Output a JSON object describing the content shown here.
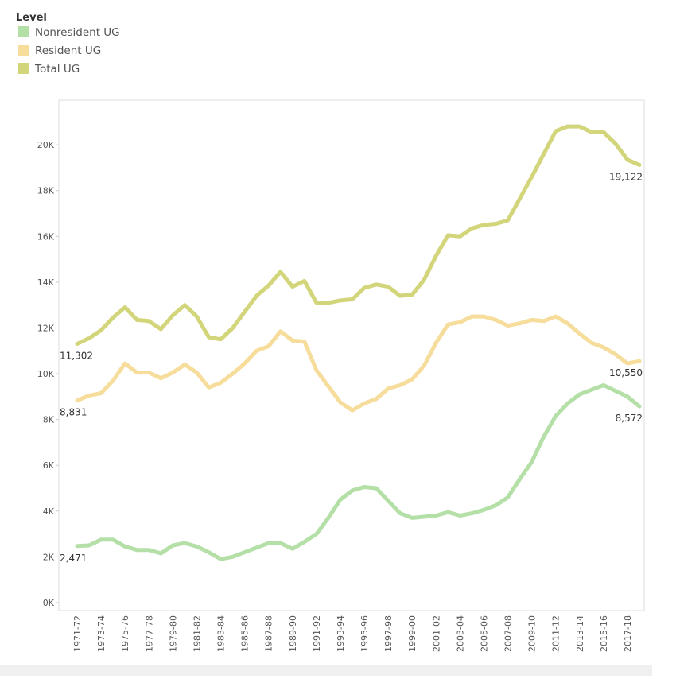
{
  "chart_data": {
    "type": "line",
    "legend_title": "Level",
    "legend": "top-left",
    "grid": false,
    "categories": [
      "1971-72",
      null,
      "1973-74",
      null,
      "1975-76",
      null,
      "1977-78",
      null,
      "1979-80",
      null,
      "1981-82",
      null,
      "1983-84",
      null,
      "1985-86",
      null,
      "1987-88",
      null,
      "1989-90",
      null,
      "1991-92",
      null,
      "1993-94",
      null,
      "1995-96",
      null,
      "1997-98",
      null,
      "1999-00",
      null,
      "2001-02",
      null,
      "2003-04",
      null,
      "2005-06",
      null,
      "2007-08",
      null,
      "2009-10",
      null,
      "2011-12",
      null,
      "2013-14",
      null,
      "2015-16",
      null,
      "2017-18",
      null
    ],
    "ylim": [
      -350,
      21950
    ],
    "yticks": [
      {
        "value": 0,
        "label": "0K"
      },
      {
        "value": 2000,
        "label": "2K"
      },
      {
        "value": 4000,
        "label": "4K"
      },
      {
        "value": 6000,
        "label": "6K"
      },
      {
        "value": 8000,
        "label": "8K"
      },
      {
        "value": 10000,
        "label": "10K"
      },
      {
        "value": 12000,
        "label": "12K"
      },
      {
        "value": 14000,
        "label": "14K"
      },
      {
        "value": 16000,
        "label": "16K"
      },
      {
        "value": 18000,
        "label": "18K"
      },
      {
        "value": 20000,
        "label": "20K"
      }
    ],
    "series": [
      {
        "name": "Nonresident UG",
        "color": "#b4e0a8",
        "values": [
          2471,
          2500,
          2750,
          2750,
          2450,
          2300,
          2300,
          2150,
          2500,
          2600,
          2450,
          2200,
          1900,
          2000,
          2200,
          2400,
          2600,
          2600,
          2350,
          2650,
          3000,
          3700,
          4500,
          4900,
          5050,
          5000,
          4450,
          3900,
          3700,
          3750,
          3800,
          3950,
          3800,
          3900,
          4050,
          4250,
          4600,
          5400,
          6150,
          7250,
          8150,
          8700,
          9100,
          9300,
          9500,
          9250,
          9000,
          8572
        ],
        "value_labels": [
          "2,471",
          null,
          null,
          null,
          null,
          null,
          null,
          null,
          null,
          null,
          null,
          null,
          null,
          null,
          null,
          null,
          null,
          null,
          null,
          null,
          null,
          null,
          null,
          null,
          null,
          null,
          null,
          null,
          null,
          null,
          null,
          null,
          null,
          null,
          null,
          null,
          null,
          null,
          null,
          null,
          null,
          null,
          null,
          null,
          null,
          null,
          null,
          "8,572"
        ]
      },
      {
        "name": "Resident UG",
        "color": "#f6dd9c",
        "values": [
          8831,
          9050,
          9150,
          9700,
          10450,
          10050,
          10050,
          9800,
          10050,
          10400,
          10050,
          9400,
          9600,
          10000,
          10450,
          11000,
          11200,
          11850,
          11450,
          11400,
          10150,
          9450,
          8750,
          8400,
          8700,
          8900,
          9350,
          9500,
          9750,
          10350,
          11350,
          12150,
          12250,
          12500,
          12500,
          12350,
          12100,
          12200,
          12350,
          12300,
          12500,
          12200,
          11750,
          11350,
          11150,
          10850,
          10450,
          10550
        ],
        "value_labels": [
          "8,831",
          null,
          null,
          null,
          null,
          null,
          null,
          null,
          null,
          null,
          null,
          null,
          null,
          null,
          null,
          null,
          null,
          null,
          null,
          null,
          null,
          null,
          null,
          null,
          null,
          null,
          null,
          null,
          null,
          null,
          null,
          null,
          null,
          null,
          null,
          null,
          null,
          null,
          null,
          null,
          null,
          null,
          null,
          null,
          null,
          null,
          null,
          "10,550"
        ]
      },
      {
        "name": "Total UG",
        "color": "#d3d57a",
        "values": [
          11302,
          11550,
          11900,
          12450,
          12900,
          12350,
          12300,
          11950,
          12550,
          13000,
          12500,
          11600,
          11500,
          12000,
          12700,
          13400,
          13850,
          14450,
          13800,
          14050,
          13100,
          13100,
          13200,
          13250,
          13750,
          13900,
          13800,
          13400,
          13450,
          14100,
          15150,
          16050,
          16000,
          16350,
          16500,
          16550,
          16700,
          17650,
          18600,
          19600,
          20600,
          20800,
          20800,
          20550,
          20550,
          20050,
          19350,
          19122
        ],
        "value_labels": [
          "11,302",
          null,
          null,
          null,
          null,
          null,
          null,
          null,
          null,
          null,
          null,
          null,
          null,
          null,
          null,
          null,
          null,
          null,
          null,
          null,
          null,
          null,
          null,
          null,
          null,
          null,
          null,
          null,
          null,
          null,
          null,
          null,
          null,
          null,
          null,
          null,
          null,
          null,
          null,
          null,
          null,
          null,
          null,
          null,
          null,
          null,
          null,
          "19,122"
        ]
      }
    ]
  }
}
